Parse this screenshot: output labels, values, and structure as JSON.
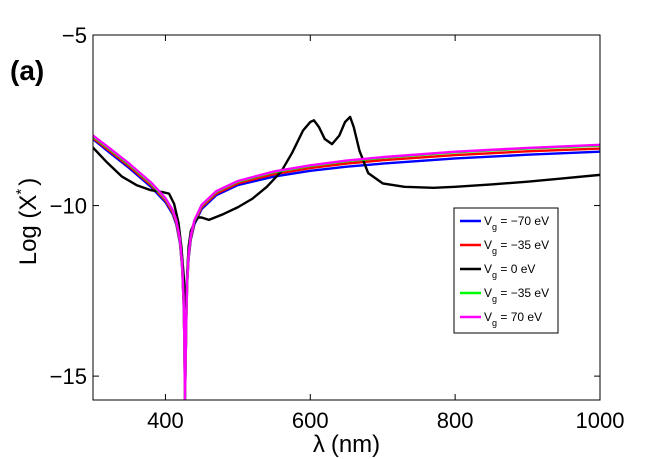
{
  "chart_data": {
    "type": "line",
    "panel_label": "(a)",
    "xlabel": {
      "symbol": "λ",
      "unit": "(nm)"
    },
    "ylabel": {
      "prefix": "Log (X",
      "superscript": "*",
      "suffix": ")"
    },
    "xlim": [
      300,
      1000
    ],
    "ylim": [
      -15.7,
      -5
    ],
    "xticks": [
      {
        "value": 400,
        "label": "400"
      },
      {
        "value": 600,
        "label": "600"
      },
      {
        "value": 800,
        "label": "800"
      },
      {
        "value": 1000,
        "label": "1000"
      }
    ],
    "yticks": [
      {
        "value": -5,
        "label": "−5"
      },
      {
        "value": -10,
        "label": "−10"
      },
      {
        "value": -15,
        "label": "−15"
      }
    ],
    "grid": false,
    "legend_position": "center-right",
    "series": [
      {
        "name": "V_g = −70 eV",
        "label_main": "V",
        "label_sub": "g",
        "label_rest": " = −70 eV",
        "color": "#0000ff",
        "x": [
          300,
          320,
          350,
          380,
          400,
          410,
          415,
          420,
          423,
          425,
          426,
          427,
          428,
          429,
          430,
          432,
          435,
          440,
          450,
          470,
          500,
          550,
          600,
          650,
          700,
          800,
          900,
          1000
        ],
        "y": [
          -8.05,
          -8.4,
          -8.9,
          -9.45,
          -9.9,
          -10.25,
          -10.55,
          -11.1,
          -11.8,
          -12.8,
          -13.8,
          -15.7,
          -14.5,
          -13.2,
          -12.3,
          -11.55,
          -11.0,
          -10.55,
          -10.1,
          -9.7,
          -9.4,
          -9.15,
          -8.98,
          -8.86,
          -8.77,
          -8.62,
          -8.51,
          -8.42
        ]
      },
      {
        "name": "V_g = −35 eV",
        "label_main": "V",
        "label_sub": "g",
        "label_rest": " = −35 eV",
        "color": "#ff0000",
        "x": [
          300,
          320,
          350,
          380,
          400,
          410,
          415,
          420,
          423,
          425,
          426,
          427,
          428,
          429,
          430,
          432,
          435,
          440,
          450,
          470,
          500,
          550,
          600,
          650,
          700,
          800,
          900,
          1000
        ],
        "y": [
          -8.02,
          -8.35,
          -8.85,
          -9.4,
          -9.85,
          -10.2,
          -10.5,
          -11.05,
          -11.75,
          -12.75,
          -13.75,
          -15.7,
          -14.45,
          -13.15,
          -12.25,
          -11.5,
          -10.95,
          -10.5,
          -10.05,
          -9.65,
          -9.35,
          -9.08,
          -8.9,
          -8.77,
          -8.67,
          -8.52,
          -8.41,
          -8.33
        ]
      },
      {
        "name": "V_g = 0 eV",
        "label_main": "V",
        "label_sub": "g",
        "label_rest": " = 0 eV",
        "color": "#000000",
        "x": [
          300,
          320,
          340,
          360,
          380,
          395,
          405,
          412,
          418,
          422,
          425,
          427,
          428,
          429,
          430,
          432,
          435,
          440,
          445,
          450,
          460,
          480,
          500,
          520,
          540,
          560,
          575,
          590,
          600,
          605,
          612,
          620,
          630,
          640,
          648,
          655,
          660,
          668,
          680,
          700,
          730,
          770,
          800,
          850,
          900,
          950,
          1000
        ],
        "y": [
          -8.3,
          -8.75,
          -9.15,
          -9.4,
          -9.55,
          -9.6,
          -9.65,
          -9.95,
          -10.5,
          -11.2,
          -12.0,
          -12.7,
          -13.0,
          -12.6,
          -12.0,
          -11.2,
          -10.75,
          -10.5,
          -10.35,
          -10.35,
          -10.42,
          -10.25,
          -10.05,
          -9.8,
          -9.45,
          -9.0,
          -8.45,
          -7.8,
          -7.55,
          -7.5,
          -7.7,
          -8.05,
          -8.2,
          -7.95,
          -7.55,
          -7.4,
          -7.7,
          -8.4,
          -9.05,
          -9.35,
          -9.45,
          -9.48,
          -9.45,
          -9.38,
          -9.3,
          -9.2,
          -9.1
        ]
      },
      {
        "name": "V_g = −35 eV",
        "label_main": "V",
        "label_sub": "g",
        "label_rest": " = −35 eV",
        "color": "#00ff00",
        "x": [
          300,
          320,
          350,
          380,
          400,
          410,
          415,
          420,
          423,
          425,
          426,
          427,
          428,
          429,
          430,
          432,
          435,
          440,
          450,
          470,
          500,
          550,
          600,
          650,
          700,
          800,
          900,
          1000
        ],
        "y": [
          -7.98,
          -8.3,
          -8.8,
          -9.35,
          -9.8,
          -10.15,
          -10.45,
          -11.0,
          -11.7,
          -12.7,
          -13.7,
          -15.7,
          -14.4,
          -13.1,
          -12.2,
          -11.45,
          -10.9,
          -10.45,
          -10.0,
          -9.6,
          -9.3,
          -9.02,
          -8.84,
          -8.7,
          -8.6,
          -8.44,
          -8.33,
          -8.24
        ]
      },
      {
        "name": "V_g = 70 eV",
        "label_main": "V",
        "label_sub": "g",
        "label_rest": " = 70 eV",
        "color": "#ff00ff",
        "x": [
          300,
          320,
          350,
          380,
          400,
          410,
          415,
          420,
          423,
          425,
          426,
          427,
          428,
          429,
          430,
          432,
          435,
          440,
          450,
          470,
          500,
          550,
          600,
          650,
          700,
          800,
          900,
          1000
        ],
        "y": [
          -7.95,
          -8.27,
          -8.77,
          -9.32,
          -9.78,
          -10.13,
          -10.43,
          -10.98,
          -11.68,
          -12.68,
          -13.68,
          -15.7,
          -14.38,
          -13.08,
          -12.18,
          -11.43,
          -10.88,
          -10.43,
          -9.98,
          -9.58,
          -9.28,
          -9.0,
          -8.82,
          -8.68,
          -8.58,
          -8.42,
          -8.31,
          -8.22
        ]
      }
    ]
  }
}
